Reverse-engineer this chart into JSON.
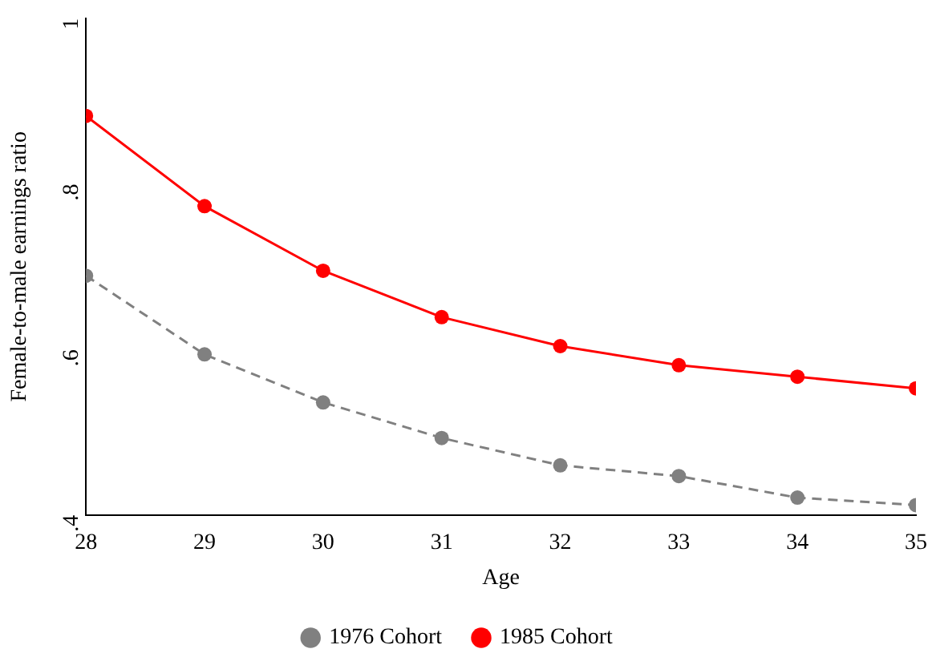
{
  "chart_data": {
    "type": "line",
    "xlabel": "Age",
    "ylabel": "Female-to-male earnings ratio",
    "x": [
      28,
      29,
      30,
      31,
      32,
      33,
      34,
      35
    ],
    "series": [
      {
        "name": "1976 Cohort",
        "color": "#808080",
        "line_style": "dashed",
        "values": [
          0.689,
          0.594,
          0.536,
          0.493,
          0.46,
          0.447,
          0.421,
          0.412
        ]
      },
      {
        "name": "1985 Cohort",
        "color": "#ff0000",
        "line_style": "solid",
        "values": [
          0.882,
          0.773,
          0.695,
          0.639,
          0.604,
          0.581,
          0.567,
          0.553
        ]
      }
    ],
    "xlim": [
      28,
      35
    ],
    "xticks": [
      28,
      29,
      30,
      31,
      32,
      33,
      34,
      35
    ],
    "ylim": [
      0.4,
      1
    ],
    "yticks": [
      {
        "value": 0.4,
        "label": ".4"
      },
      {
        "value": 0.6,
        "label": ".6"
      },
      {
        "value": 0.8,
        "label": ".8"
      },
      {
        "value": 1,
        "label": "1"
      }
    ],
    "grid": false,
    "legend": "bottom",
    "marker": "circle"
  }
}
